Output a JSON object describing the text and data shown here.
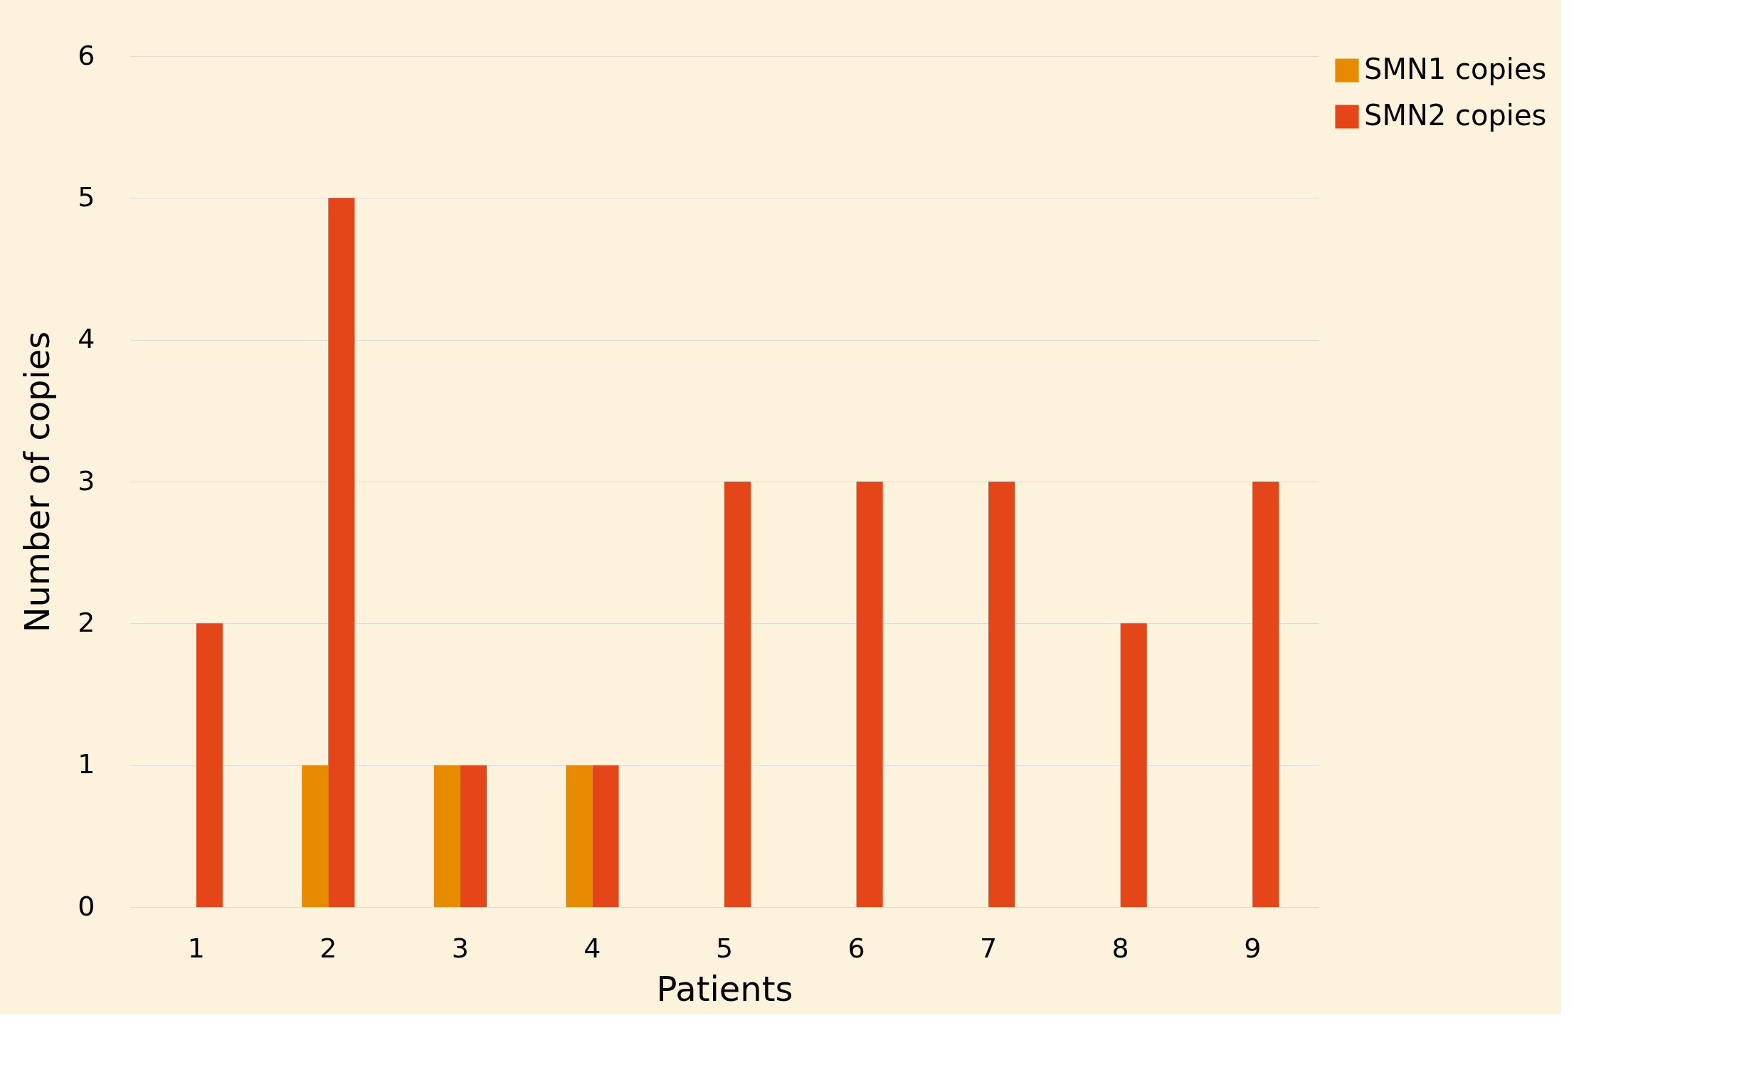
{
  "chart_data": {
    "type": "bar",
    "xlabel": "Patients",
    "ylabel": "Number of copies",
    "categories": [
      "1",
      "2",
      "3",
      "4",
      "5",
      "6",
      "7",
      "8",
      "9"
    ],
    "series": [
      {
        "name": "SMN1 copies",
        "color": "#e68a00",
        "values": [
          0,
          1,
          1,
          1,
          0,
          0,
          0,
          0,
          0
        ]
      },
      {
        "name": "SMN2 copies",
        "color": "#e4461a",
        "values": [
          2,
          5,
          1,
          1,
          3,
          3,
          3,
          2,
          3
        ]
      }
    ],
    "ylim": [
      0,
      6
    ],
    "yticks": [
      0,
      1,
      2,
      3,
      4,
      5,
      6
    ],
    "grid": "y",
    "legend": "top right"
  }
}
